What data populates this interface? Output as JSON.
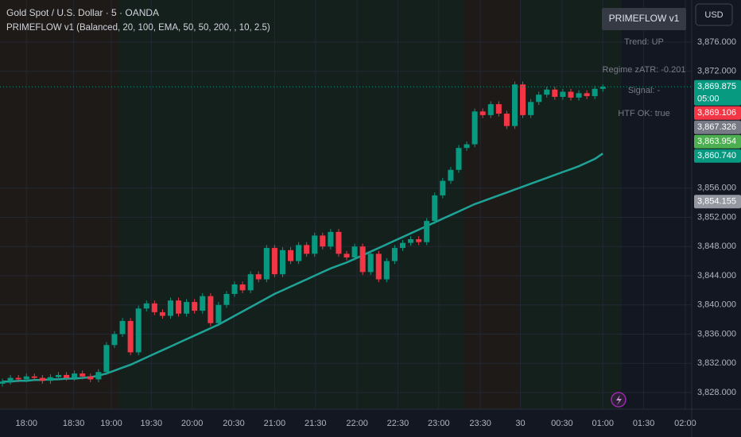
{
  "chart_data": {
    "type": "candlestick",
    "title": "Gold Spot / U.S. Dollar · 5 · OANDA",
    "subtitle": "PRIMEFLOW v1 (Balanced, 20, 100, EMA, 50, 50, 200, , 10, 2.5)",
    "up_color": "#089981",
    "down_color": "#f23645",
    "open": [
      3829.2,
      3829.5,
      3830,
      3829.8,
      3830.2,
      3830,
      3829.6,
      3830.1,
      3830.4,
      3830,
      3830.6,
      3830.2,
      3829.8,
      3830.8,
      3834.5,
      3836,
      3837.8,
      3833.5,
      3839.5,
      3840.2,
      3839,
      3838.5,
      3840.6,
      3838.8,
      3840.4,
      3839.2,
      3841.2,
      3837.5,
      3840,
      3841.5,
      3842.8,
      3842,
      3844.2,
      3843.5,
      3847.8,
      3844.2,
      3847.5,
      3846,
      3848.2,
      3847,
      3849.5,
      3848,
      3850,
      3847,
      3846.5,
      3848,
      3844.5,
      3847,
      3843.5,
      3846,
      3847.8,
      3848.5,
      3849,
      3848.6,
      3851.5,
      3855,
      3857,
      3858.5,
      3861.5,
      3862,
      3866.5,
      3866,
      3867.5,
      3866.2,
      3864.5,
      3870.2,
      3866,
      3867.8,
      3868.8,
      3869.5,
      3868.5,
      3869.2,
      3868.4,
      3869,
      3868.6,
      3869.6
    ],
    "high": [
      3829.9,
      3830.4,
      3830.4,
      3830.6,
      3830.6,
      3830.4,
      3830.5,
      3830.8,
      3830.8,
      3831,
      3831,
      3830.6,
      3831.2,
      3834.9,
      3836.4,
      3838.2,
      3838.2,
      3839.9,
      3840.6,
      3840.6,
      3839.4,
      3841,
      3841,
      3840.8,
      3840.8,
      3841.6,
      3841.6,
      3840.4,
      3841.9,
      3843.2,
      3843.2,
      3844.6,
      3844.6,
      3848.2,
      3848.2,
      3847.9,
      3847.9,
      3848.6,
      3848.6,
      3849.9,
      3849.9,
      3850.4,
      3850.4,
      3847.4,
      3848.4,
      3848.4,
      3847.4,
      3847.4,
      3846.4,
      3848.2,
      3848.9,
      3849.4,
      3849.4,
      3851.9,
      3855.4,
      3857.4,
      3858.9,
      3861.9,
      3862.4,
      3866.9,
      3866.9,
      3867.9,
      3867.9,
      3866.6,
      3870.6,
      3870.6,
      3868.2,
      3869.2,
      3869.9,
      3869.9,
      3869.6,
      3869.6,
      3869.4,
      3869.4,
      3870,
      3870.2
    ],
    "low": [
      3828.8,
      3829.1,
      3829.4,
      3829.4,
      3829.6,
      3829.2,
      3829.2,
      3829.7,
      3829.6,
      3829.6,
      3829.8,
      3829.4,
      3829.4,
      3830.4,
      3834.1,
      3835.6,
      3833.1,
      3833.1,
      3839.1,
      3838.6,
      3838.1,
      3838.1,
      3838.4,
      3838.4,
      3838.8,
      3838.8,
      3837.1,
      3837.1,
      3839.6,
      3841.1,
      3841.6,
      3841.6,
      3843.1,
      3843.1,
      3843.8,
      3843.8,
      3845.6,
      3845.6,
      3846.6,
      3846.6,
      3847.6,
      3847.6,
      3846.6,
      3846.1,
      3846.1,
      3844.1,
      3844.1,
      3843.1,
      3843.1,
      3845.6,
      3847.4,
      3848.1,
      3848.2,
      3848.2,
      3851.1,
      3854.6,
      3856.6,
      3858.1,
      3861.1,
      3861.6,
      3865.6,
      3865.6,
      3865.8,
      3864.1,
      3864.1,
      3865.6,
      3865.6,
      3867.4,
      3868.4,
      3868.1,
      3868.1,
      3868,
      3868,
      3868.2,
      3868.2,
      3869.2
    ],
    "close": [
      3829.5,
      3830,
      3829.8,
      3830.2,
      3830,
      3829.6,
      3830.1,
      3830.4,
      3830,
      3830.6,
      3830.2,
      3829.8,
      3830.8,
      3834.5,
      3836,
      3837.8,
      3833.5,
      3839.5,
      3840.2,
      3839,
      3838.5,
      3840.6,
      3838.8,
      3840.4,
      3839.2,
      3841.2,
      3837.5,
      3840,
      3841.5,
      3842.8,
      3842,
      3844.2,
      3843.5,
      3847.8,
      3844.2,
      3847.5,
      3846,
      3848.2,
      3847,
      3849.5,
      3848,
      3850,
      3847,
      3846.5,
      3848,
      3844.5,
      3847,
      3843.5,
      3846,
      3847.8,
      3848.5,
      3849,
      3848.6,
      3851.5,
      3855,
      3857,
      3858.5,
      3861.5,
      3862,
      3866.5,
      3866,
      3867.5,
      3866.2,
      3864.5,
      3870.2,
      3866,
      3867.8,
      3868.8,
      3869.5,
      3868.5,
      3869.2,
      3868.4,
      3869,
      3868.6,
      3869.6,
      3869.875
    ],
    "series": [
      {
        "color": "#1fa396",
        "values": [
          3829.5,
          3829.5,
          3829.6,
          3829.6,
          3829.7,
          3829.7,
          3829.8,
          3829.8,
          3829.9,
          3829.9,
          3830,
          3830.1,
          3830.3,
          3830.6,
          3831,
          3831.4,
          3831.8,
          3832.3,
          3832.8,
          3833.3,
          3833.8,
          3834.3,
          3834.8,
          3835.3,
          3835.8,
          3836.3,
          3836.8,
          3837.3,
          3837.9,
          3838.5,
          3839.1,
          3839.7,
          3840.3,
          3840.9,
          3841.5,
          3842,
          3842.5,
          3843,
          3843.5,
          3844,
          3844.5,
          3845,
          3845.4,
          3845.8,
          3846.3,
          3846.8,
          3847.3,
          3847.8,
          3848.3,
          3848.8,
          3849.3,
          3849.8,
          3850.3,
          3850.8,
          3851.3,
          3851.8,
          3852.3,
          3852.8,
          3853.3,
          3853.8,
          3854.2,
          3854.6,
          3855,
          3855.4,
          3855.8,
          3856.2,
          3856.6,
          3857,
          3857.4,
          3857.8,
          3858.2,
          3858.6,
          3859,
          3859.5,
          3860,
          3860.74
        ]
      }
    ],
    "xlim": [
      -0.3,
      86.1
    ],
    "xticks": [
      {
        "value": 3,
        "label": "18:00"
      },
      {
        "value": 8.9,
        "label": "18:30"
      },
      {
        "value": 13.6,
        "label": "19:00"
      },
      {
        "value": 18.6,
        "label": "19:30"
      },
      {
        "value": 23.7,
        "label": "20:00"
      },
      {
        "value": 28.9,
        "label": "20:30"
      },
      {
        "value": 34,
        "label": "21:00"
      },
      {
        "value": 39.1,
        "label": "21:30"
      },
      {
        "value": 44.3,
        "label": "22:00"
      },
      {
        "value": 49.4,
        "label": "22:30"
      },
      {
        "value": 54.5,
        "label": "23:00"
      },
      {
        "value": 59.7,
        "label": "23:30"
      },
      {
        "value": 64.7,
        "label": "30"
      },
      {
        "value": 69.9,
        "label": "00:30"
      },
      {
        "value": 75,
        "label": "01:00"
      },
      {
        "value": 80.1,
        "label": "01:30"
      },
      {
        "value": 85.3,
        "label": "02:00"
      }
    ],
    "ylim": [
      3825.71,
      3881.77
    ],
    "yticks": [
      {
        "value": 3876,
        "label": "3,876.000"
      },
      {
        "value": 3872,
        "label": "3,872.000"
      },
      {
        "value": 3856,
        "label": "3,856.000"
      },
      {
        "value": 3852,
        "label": "3,852.000"
      },
      {
        "value": 3848,
        "label": "3,848.000"
      },
      {
        "value": 3844,
        "label": "3,844.000"
      },
      {
        "value": 3840,
        "label": "3,840.000"
      },
      {
        "value": 3836,
        "label": "3,836.000"
      },
      {
        "value": 3832,
        "label": "3,832.000"
      },
      {
        "value": 3828,
        "label": "3,828.000"
      }
    ],
    "grid": true,
    "price_labels": [
      {
        "value": 3869.875,
        "label": "3,869.875",
        "countdown": "05:00",
        "color": "#089981"
      },
      {
        "value": 3869.106,
        "label": "3,869.106",
        "color": "#f23645"
      },
      {
        "value": 3867.326,
        "label": "3,867.326",
        "color": "#787b86"
      },
      {
        "value": 3863.954,
        "label": "3,863.954",
        "color": "#4caf50"
      },
      {
        "value": 3860.74,
        "label": "3,860.740",
        "color": "#089981"
      },
      {
        "value": 3854.155,
        "label": "3,854.155",
        "color": "#9598a1"
      }
    ]
  },
  "panel": {
    "button": "PRIMEFLOW v1",
    "lines": [
      "Trend: UP",
      "Regime zATR: -0.201",
      "Signal: -",
      "HTF OK: true"
    ]
  },
  "currency": "USD"
}
